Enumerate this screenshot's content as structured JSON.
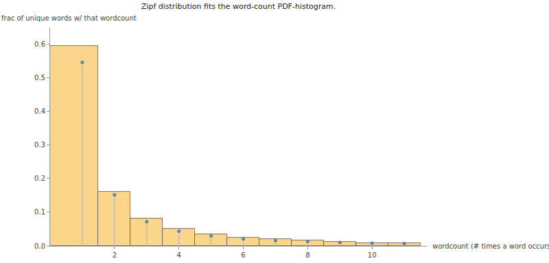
{
  "chart_data": {
    "type": "histogram",
    "title": "Zipf distribution fits the word-count PDF-histogram.",
    "x_label": "wordcount (# times a word occurs)",
    "y_label": "frac of unique words w/ that wordcount",
    "bins": [
      0,
      1.5,
      2.5,
      3.5,
      4.5,
      5.5,
      6.5,
      7.5,
      8.5,
      9.5,
      10.5,
      11.5
    ],
    "values": [
      0.595,
      0.162,
      0.082,
      0.05,
      0.035,
      0.025,
      0.02,
      0.017,
      0.012,
      0.009,
      0.008
    ],
    "color": "#fbd58a",
    "fit": {
      "type": "scatter",
      "x": [
        1,
        2,
        3,
        4,
        5,
        6,
        7,
        8,
        9,
        10,
        11
      ],
      "values": [
        0.546,
        0.152,
        0.072,
        0.044,
        0.03,
        0.021,
        0.016,
        0.013,
        0.01,
        0.008,
        0.007
      ],
      "color": "#5e81b5",
      "marker": "circle"
    },
    "xlim": [
      0,
      11.7
    ],
    "xticks": [
      2,
      4,
      6,
      8,
      10
    ],
    "ylim": [
      0,
      0.65
    ],
    "yticks": [
      {
        "value": 0,
        "label": "0.0"
      },
      0.1,
      0.2,
      0.3,
      0.4,
      0.5,
      0.6
    ],
    "grid": false
  }
}
